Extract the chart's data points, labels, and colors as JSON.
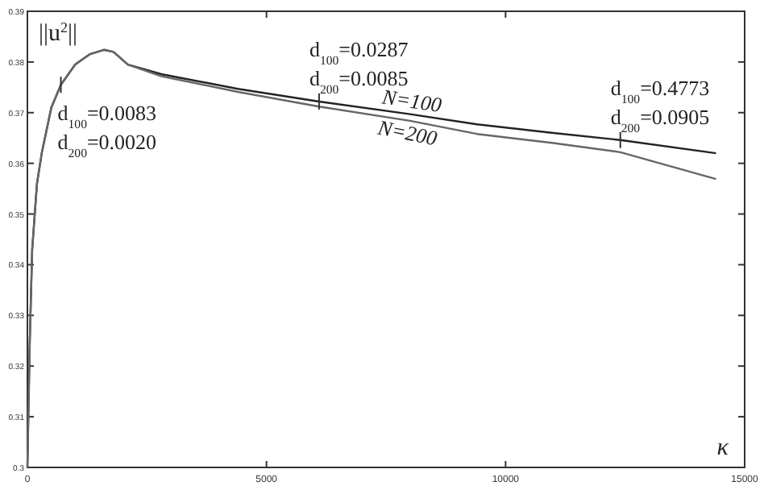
{
  "chart_data": {
    "type": "line",
    "ylabel": "||u$^{2}$||",
    "xlabel": "κ",
    "x": [
      0,
      20,
      50,
      100,
      200,
      300,
      500,
      700,
      1000,
      1300,
      1600,
      1800,
      2100,
      2800,
      4400,
      6100,
      8000,
      9400,
      11000,
      12400,
      14400
    ],
    "series": [
      {
        "name": "N=100",
        "color": "#222222",
        "values": [
          0.3,
          0.31,
          0.325,
          0.343,
          0.356,
          0.362,
          0.371,
          0.3755,
          0.3795,
          0.3815,
          0.3824,
          0.382,
          0.3795,
          0.3776,
          0.3747,
          0.3722,
          0.3697,
          0.3677,
          0.366,
          0.3646,
          0.362
        ]
      },
      {
        "name": "N=200",
        "color": "#666666",
        "values": [
          0.3,
          0.31,
          0.325,
          0.343,
          0.356,
          0.362,
          0.371,
          0.3755,
          0.3795,
          0.3815,
          0.3824,
          0.382,
          0.3795,
          0.3772,
          0.3741,
          0.3712,
          0.3684,
          0.3658,
          0.364,
          0.3622,
          0.3569
        ]
      }
    ],
    "xlim": [
      0,
      15000
    ],
    "xticks": [
      0,
      5000,
      10000,
      15000
    ],
    "ylim": [
      0.3,
      0.39
    ],
    "yticks": [
      {
        "value": 0.3,
        "label": "0.3"
      },
      0.31,
      0.32,
      0.33,
      0.34,
      0.35,
      0.36,
      0.37,
      0.38,
      0.39
    ],
    "annotations": [
      {
        "text": "d$_{100}$=0.0083\nd$_{200}$=0.0020",
        "x": 700,
        "y": 0.3755
      },
      {
        "text": "d$_{100}$=0.0287\nd$_{200}$=0.0085",
        "x": 6100,
        "y": 0.3722
      },
      {
        "text": "d$_{100}$=0.4773\nd$_{200}$=0.0905",
        "x": 12400,
        "y": 0.3646
      }
    ],
    "grid": false,
    "line_style": "solid"
  }
}
